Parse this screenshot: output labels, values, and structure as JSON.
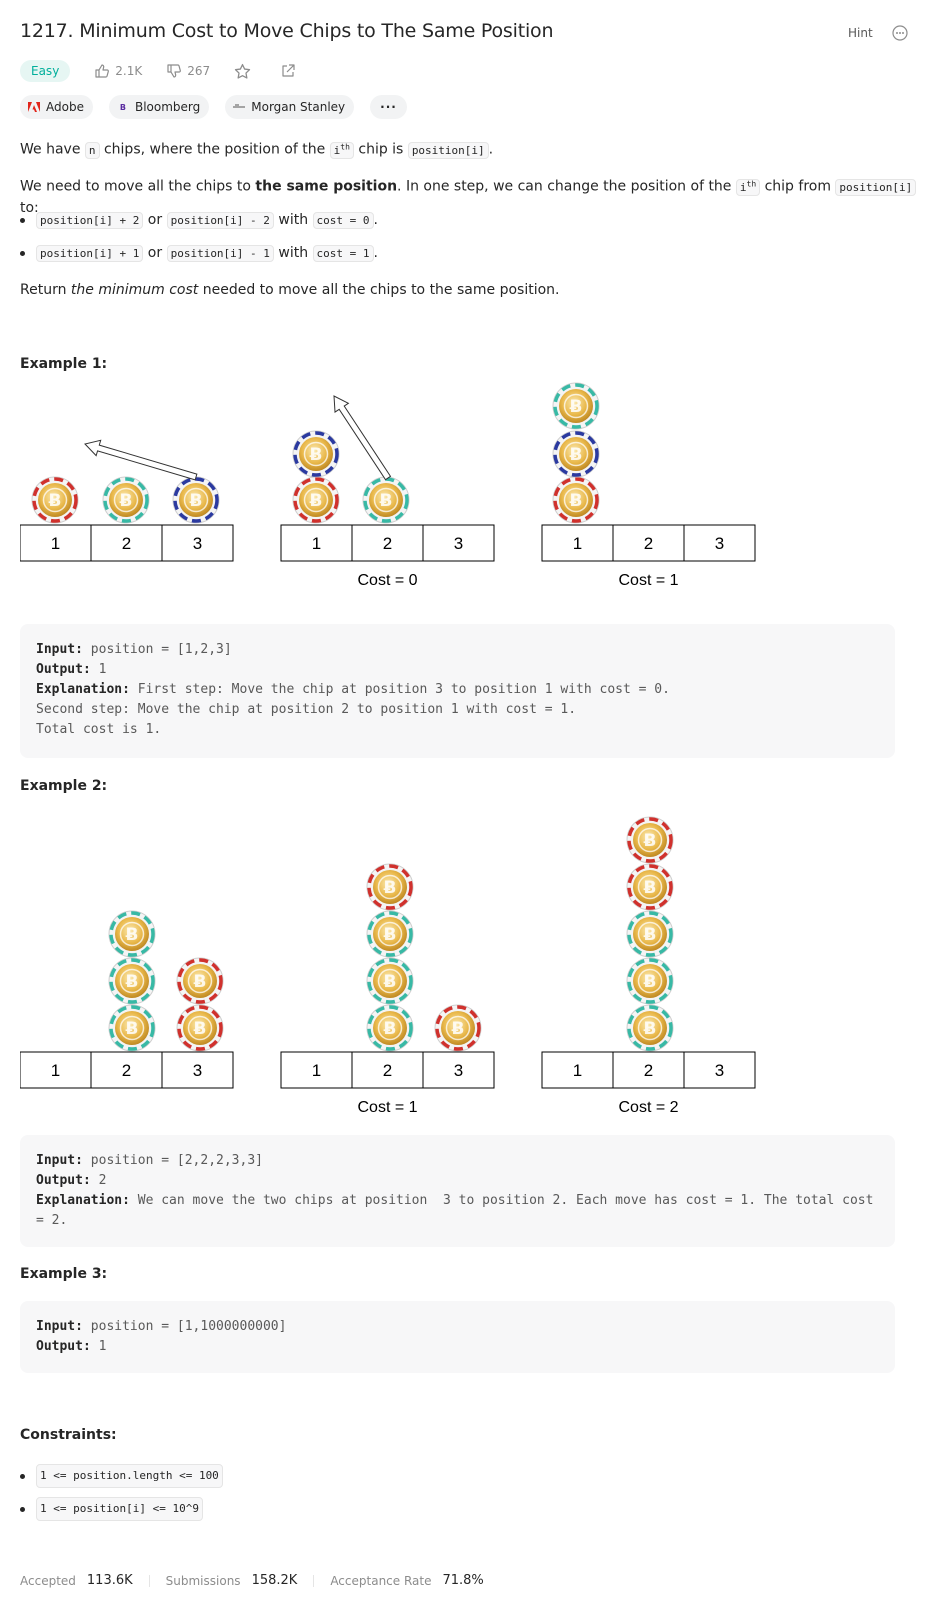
{
  "problem": {
    "title": "1217. Minimum Cost to Move Chips to The Same Position",
    "hint_label": "Hint",
    "difficulty": "Easy",
    "likes": "2.1K",
    "dislikes": "267",
    "companies": [
      "Adobe",
      "Bloomberg",
      "Morgan Stanley"
    ],
    "companies_more": "···"
  },
  "description": {
    "p1_a": "We have ",
    "p1_code1": "n",
    "p1_b": " chips, where the position of the ",
    "p1_code2": "i",
    "p1_sup": "th",
    "p1_c": " chip is ",
    "p1_code3": "position[i]",
    "p1_d": ".",
    "p2_a": "We need to move all the chips to ",
    "p2_bold": "the same position",
    "p2_b": ". In one step, we can change the position of the ",
    "p2_code1": "i",
    "p2_sup": "th",
    "p2_c": " chip from ",
    "p2_code2": "position[i]",
    "p2_d": " to:",
    "b1_code1": "position[i] + 2",
    "b1_or": " or ",
    "b1_code2": "position[i] - 2",
    "b1_with": " with ",
    "b1_code3": "cost = 0",
    "b1_end": ".",
    "b2_code1": "position[i] + 1",
    "b2_or": " or ",
    "b2_code2": "position[i] - 1",
    "b2_with": " with ",
    "b2_code3": "cost = 1",
    "b2_end": ".",
    "p3_a": "Return ",
    "p3_em": "the minimum cost",
    "p3_b": " needed to move all the chips to the same position."
  },
  "examples": [
    {
      "heading": "Example 1:",
      "input_label": "Input:",
      "input": " position = [1,2,3]",
      "output_label": "Output:",
      "output": " 1",
      "explanation_label": "Explanation:",
      "explanation": " First step: Move the chip at position 3 to position 1 with cost = 0.\nSecond step: Move the chip at position 2 to position 1 with cost = 1.\nTotal cost is 1.",
      "figure_costs": [
        "Cost = 0",
        "Cost = 1"
      ]
    },
    {
      "heading": "Example 2:",
      "input_label": "Input:",
      "input": " position = [2,2,2,3,3]",
      "output_label": "Output:",
      "output": " 2",
      "explanation_label": "Explanation:",
      "explanation": " We can move the two chips at position  3 to position 2. Each move has cost = 1. The total cost = 2.",
      "figure_costs": [
        "Cost = 1",
        "Cost = 2"
      ]
    },
    {
      "heading": "Example 3:",
      "input_label": "Input:",
      "input": " position = [1,1000000000]",
      "output_label": "Output:",
      "output": " 1"
    }
  ],
  "cell_labels": [
    "1",
    "2",
    "3"
  ],
  "constraints": {
    "heading": "Constraints:",
    "items": [
      "1 <= position.length <= 100",
      "1 <= position[i] <= 10^9"
    ]
  },
  "stats": {
    "accepted_label": "Accepted",
    "accepted": "113.6K",
    "submissions_label": "Submissions",
    "submissions": "158.2K",
    "rate_label": "Acceptance Rate",
    "rate": "71.8%"
  },
  "colors": {
    "easy": "#00af9b",
    "chip_gold": "#e9b84a",
    "chip_red": "#d0312d",
    "chip_teal": "#38b9a5",
    "chip_blue": "#2b3aa0"
  }
}
